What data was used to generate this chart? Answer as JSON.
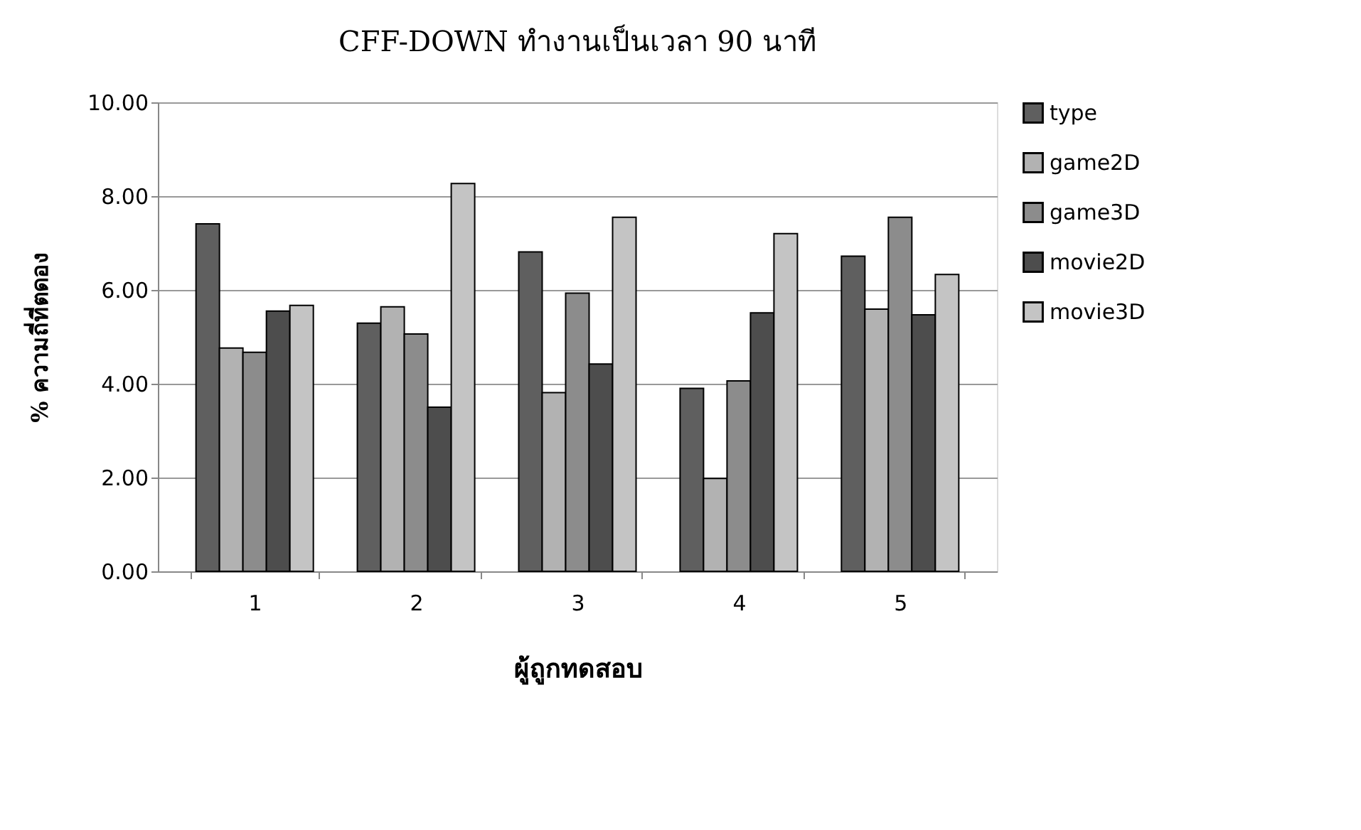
{
  "chart_data": {
    "type": "bar",
    "title": "CFF-DOWN ทำงานเป็นเวลา 90 นาที",
    "xlabel": "ผู้ถูกทดสอบ",
    "ylabel": "% ความถี่ที่ตดอง",
    "categories": [
      "1",
      "2",
      "3",
      "4",
      "5"
    ],
    "series": [
      {
        "name": "type",
        "color": "#5f5f5f",
        "values": [
          7.41,
          5.29,
          6.81,
          3.9,
          6.72
        ]
      },
      {
        "name": "game2D",
        "color": "#b2b2b2",
        "values": [
          4.76,
          5.64,
          3.81,
          1.98,
          5.59
        ]
      },
      {
        "name": "game3D",
        "color": "#8c8c8c",
        "values": [
          4.67,
          5.06,
          5.93,
          4.06,
          7.55
        ]
      },
      {
        "name": "movie2D",
        "color": "#4d4d4d",
        "values": [
          5.55,
          3.5,
          4.42,
          5.51,
          5.47
        ]
      },
      {
        "name": "movie3D",
        "color": "#c4c4c4",
        "values": [
          5.67,
          8.27,
          7.55,
          7.2,
          6.33
        ]
      }
    ],
    "ylim": [
      0,
      10
    ],
    "yticks": [
      {
        "value": 0,
        "label": "0.00"
      },
      {
        "value": 2,
        "label": "2.00"
      },
      {
        "value": 4,
        "label": "4.00"
      },
      {
        "value": 6,
        "label": "6.00"
      },
      {
        "value": 8,
        "label": "8.00"
      },
      {
        "value": 10,
        "label": "10.00"
      }
    ],
    "grid": "y",
    "legend": "right"
  }
}
